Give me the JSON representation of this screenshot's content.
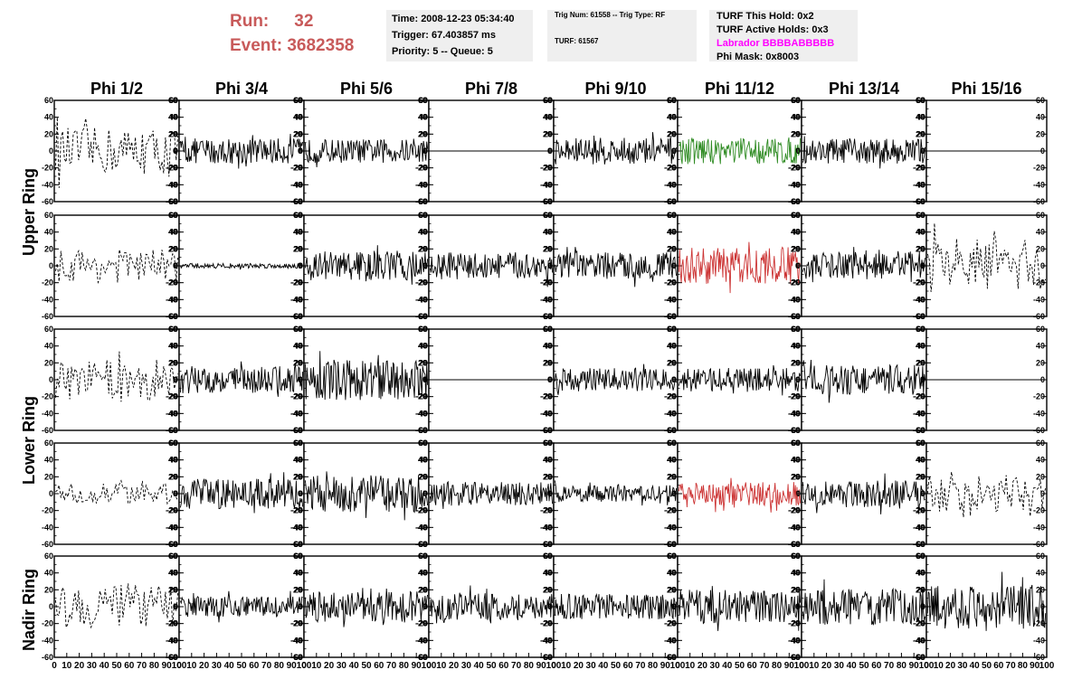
{
  "header": {
    "run_label": "Run:",
    "run_value": "32",
    "event_label": "Event:",
    "event_value": "3682358",
    "time": "Time: 2008-12-23 05:34:40",
    "trigger": "Trigger: 67.403857 ms",
    "priority": "Priority: 5 -- Queue: 5",
    "trig_num": "Trig Num: 61558 -- Trig Type: RF",
    "turf": "TURF: 61567",
    "turf_hold": "TURF This Hold: 0x2",
    "turf_active": "TURF Active Holds: 0x3",
    "labrador": "Labrador BBBBABBBBB",
    "phi_mask": "Phi Mask: 0x8003"
  },
  "colors": {
    "run_text": "#c85a5a",
    "labrador_text": "#ff00ff",
    "trace_default": "#000000",
    "trace_green": "#2e8b22",
    "trace_red": "#cc3333",
    "info_box": "#efefef"
  },
  "chart_data": {
    "type": "line",
    "columns": [
      "Phi 1/2",
      "Phi 3/4",
      "Phi 5/6",
      "Phi 7/8",
      "Phi 9/10",
      "Phi 11/12",
      "Phi 13/14",
      "Phi 15/16"
    ],
    "rows": [
      "Upper Ring",
      "",
      "Lower Ring",
      "",
      "Nadir Ring"
    ],
    "xlim": [
      0,
      100
    ],
    "ylim": [
      -60,
      60
    ],
    "x_ticks": [
      0,
      10,
      20,
      30,
      40,
      50,
      60,
      70,
      80,
      90,
      100
    ],
    "y_ticks": [
      -60,
      -40,
      -20,
      0,
      20,
      40,
      60
    ],
    "panels": [
      [
        {
          "style": "dashed",
          "amplitude": 28,
          "color": "black"
        },
        {
          "style": "solid",
          "amplitude": 15,
          "color": "black"
        },
        {
          "style": "solid",
          "amplitude": 14,
          "color": "black"
        },
        {
          "style": "flat",
          "amplitude": 0,
          "color": "black"
        },
        {
          "style": "solid",
          "amplitude": 16,
          "color": "black"
        },
        {
          "style": "solid",
          "amplitude": 16,
          "color": "green"
        },
        {
          "style": "solid",
          "amplitude": 15,
          "color": "black"
        },
        {
          "style": "flat",
          "amplitude": 0,
          "color": "black"
        }
      ],
      [
        {
          "style": "dashed",
          "amplitude": 20,
          "color": "black"
        },
        {
          "style": "solid",
          "amplitude": 3,
          "color": "black"
        },
        {
          "style": "solid",
          "amplitude": 18,
          "color": "black"
        },
        {
          "style": "solid",
          "amplitude": 16,
          "color": "black"
        },
        {
          "style": "solid",
          "amplitude": 16,
          "color": "black"
        },
        {
          "style": "solid",
          "amplitude": 22,
          "color": "red"
        },
        {
          "style": "solid",
          "amplitude": 16,
          "color": "black"
        },
        {
          "style": "dashed",
          "amplitude": 32,
          "color": "black"
        }
      ],
      [
        {
          "style": "dashed",
          "amplitude": 24,
          "color": "black"
        },
        {
          "style": "solid",
          "amplitude": 16,
          "color": "black"
        },
        {
          "style": "solid",
          "amplitude": 24,
          "color": "black"
        },
        {
          "style": "flat",
          "amplitude": 0,
          "color": "black"
        },
        {
          "style": "solid",
          "amplitude": 14,
          "color": "black"
        },
        {
          "style": "solid",
          "amplitude": 14,
          "color": "black"
        },
        {
          "style": "solid",
          "amplitude": 18,
          "color": "black"
        },
        {
          "style": "flat",
          "amplitude": 0,
          "color": "black"
        }
      ],
      [
        {
          "style": "dashed",
          "amplitude": 12,
          "color": "black"
        },
        {
          "style": "solid",
          "amplitude": 18,
          "color": "black"
        },
        {
          "style": "solid",
          "amplitude": 22,
          "color": "black"
        },
        {
          "style": "solid",
          "amplitude": 14,
          "color": "black"
        },
        {
          "style": "solid",
          "amplitude": 10,
          "color": "black"
        },
        {
          "style": "solid",
          "amplitude": 14,
          "color": "red"
        },
        {
          "style": "solid",
          "amplitude": 16,
          "color": "black"
        },
        {
          "style": "dashed",
          "amplitude": 22,
          "color": "black"
        }
      ],
      [
        {
          "style": "dashed",
          "amplitude": 26,
          "color": "black"
        },
        {
          "style": "solid",
          "amplitude": 12,
          "color": "black"
        },
        {
          "style": "solid",
          "amplitude": 18,
          "color": "black"
        },
        {
          "style": "solid",
          "amplitude": 16,
          "color": "black"
        },
        {
          "style": "solid",
          "amplitude": 15,
          "color": "black"
        },
        {
          "style": "solid",
          "amplitude": 20,
          "color": "black"
        },
        {
          "style": "solid",
          "amplitude": 22,
          "color": "black"
        },
        {
          "style": "solid",
          "amplitude": 26,
          "color": "black"
        }
      ]
    ]
  }
}
